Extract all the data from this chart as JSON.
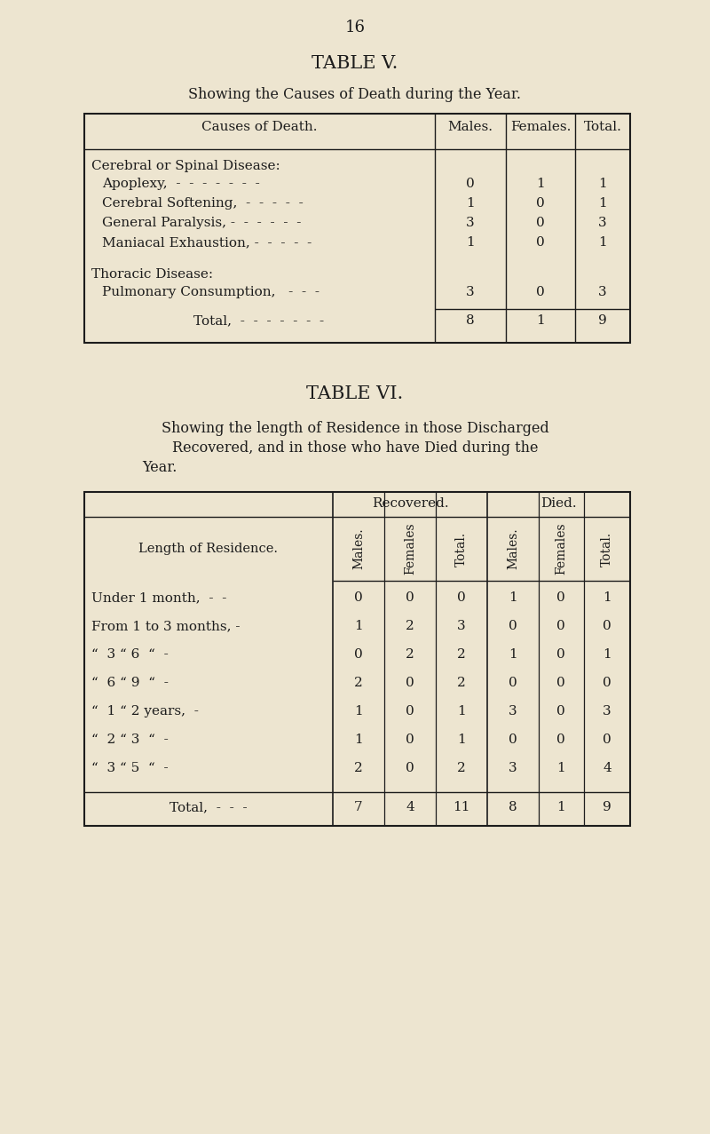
{
  "bg_color": "#ede5d0",
  "page_number": "16",
  "table5": {
    "title": "TABLE V.",
    "subtitle": "Showing the Causes of Death during the Year.",
    "sections": [
      {
        "header": "Cerebral or Spinal Disease:",
        "rows": [
          [
            "Apoplexy,  -  -  -  -  -  -  -",
            "0",
            "1",
            "1"
          ],
          [
            "Cerebral Softening,  -  -  -  -  -",
            "1",
            "0",
            "1"
          ],
          [
            "General Paralysis, -  -  -  -  -  -",
            "3",
            "0",
            "3"
          ],
          [
            "Maniacal Exhaustion, -  -  -  -  -",
            "1",
            "0",
            "1"
          ]
        ]
      },
      {
        "header": "Thoracic Disease:",
        "rows": [
          [
            "Pulmonary Consumption,   -  -  -",
            "3",
            "0",
            "3"
          ]
        ]
      }
    ],
    "total_row": [
      "Total,  -  -  -  -  -  -  -",
      "8",
      "1",
      "9"
    ]
  },
  "table6": {
    "title": "TABLE VI.",
    "subtitle_line1": "Showing the length of Residence in those Discharged",
    "subtitle_line2": "Recovered, and in those who have Died during the",
    "subtitle_line3": "Year.",
    "col_group1": "Recovered.",
    "col_group2": "Died.",
    "col_headers": [
      "Males.",
      "Females",
      "Total.",
      "Males.",
      "Females",
      "Total."
    ],
    "row_header": "Length of Residence.",
    "rows": [
      [
        "Under 1 month,  -  -",
        "0",
        "0",
        "0",
        "1",
        "0",
        "1"
      ],
      [
        "From 1 to 3 months, -",
        "1",
        "2",
        "3",
        "0",
        "0",
        "0"
      ],
      [
        "“  3 “ 6  “  -",
        "0",
        "2",
        "2",
        "1",
        "0",
        "1"
      ],
      [
        "“  6 “ 9  “  -",
        "2",
        "0",
        "2",
        "0",
        "0",
        "0"
      ],
      [
        "“  1 “ 2 years,  -",
        "1",
        "0",
        "1",
        "3",
        "0",
        "3"
      ],
      [
        "“  2 “ 3  “  -",
        "1",
        "0",
        "1",
        "0",
        "0",
        "0"
      ],
      [
        "“  3 “ 5  “  -",
        "2",
        "0",
        "2",
        "3",
        "1",
        "4"
      ]
    ],
    "total_row": [
      "Total,  -  -  -",
      "7",
      "4",
      "11",
      "8",
      "1",
      "9"
    ]
  }
}
